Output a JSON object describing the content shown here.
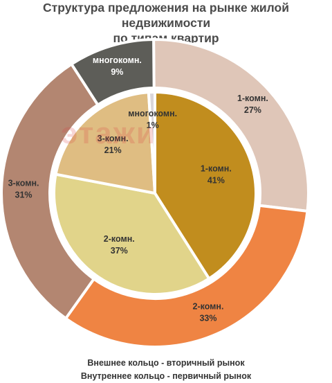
{
  "title_line1": "Структура предложения на рынке жилой недвижимости",
  "title_line2": "по типам квартир",
  "watermark": "этажи",
  "legend": {
    "outer": "Внешнее кольцо - вторичный рынок",
    "inner": "Внутреннее кольцо - первичный рынок"
  },
  "chart_data": {
    "type": "pie",
    "subtype": "nested-donut",
    "outer_ring": {
      "label": "Внешнее кольцо - вторичный рынок",
      "slices": [
        {
          "category": "1-комн.",
          "value": 27,
          "label": "27%",
          "color": "#dfc6b8"
        },
        {
          "category": "2-комн.",
          "value": 33,
          "label": "33%",
          "color": "#ef8443"
        },
        {
          "category": "3-комн.",
          "value": 31,
          "label": "31%",
          "color": "#b38671"
        },
        {
          "category": "многокомн.",
          "value": 9,
          "label": "9%",
          "color": "#5d5d58"
        }
      ]
    },
    "inner_ring": {
      "label": "Внутреннее кольцо - первичный рынок",
      "slices": [
        {
          "category": "1-комн.",
          "value": 41,
          "label": "41%",
          "color": "#c18d1e"
        },
        {
          "category": "2-комн.",
          "value": 37,
          "label": "37%",
          "color": "#e1d48a"
        },
        {
          "category": "3-комн.",
          "value": 21,
          "label": "21%",
          "color": "#dfbd82"
        },
        {
          "category": "многокомн.",
          "value": 1,
          "label": "1%",
          "color": "#dad6da"
        }
      ]
    }
  }
}
